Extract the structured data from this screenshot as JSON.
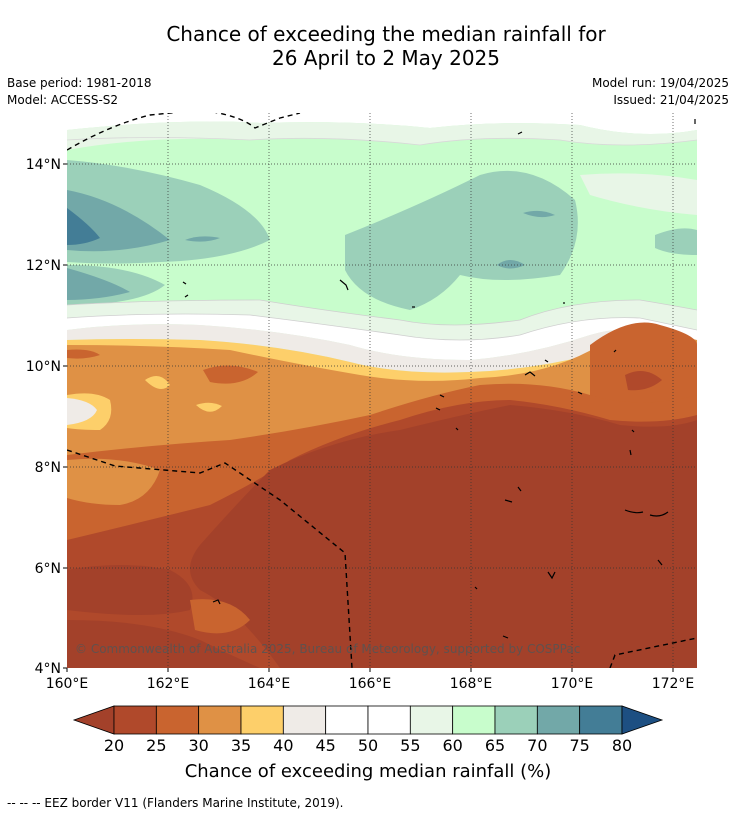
{
  "title_line1": "Chance of exceeding the median rainfall for",
  "title_line2": "26 April to 2 May 2025",
  "base_period": "Base period: 1981-2018",
  "model": "Model: ACCESS-S2",
  "model_run": "Model run: 19/04/2025",
  "issued": "Issued: 21/04/2025",
  "copyright": "© Commonwealth of Australia 2025, Bureau of Meteorology, supported by COSPPac",
  "colorbar_title": "Chance of exceeding median rainfall (%)",
  "footnote": "--  --  -- EEZ border V11 (Flanders Marine Institute, 2019).",
  "lat_labels": [
    "14°N",
    "12°N",
    "10°N",
    "8°N",
    "6°N",
    "4°N"
  ],
  "lon_labels": [
    "160°E",
    "162°E",
    "164°E",
    "166°E",
    "168°E",
    "170°E",
    "172°E"
  ],
  "chart_data": {
    "type": "heatmap",
    "lon_range": [
      160,
      172.5
    ],
    "lat_range": [
      4,
      15
    ],
    "colorbar": {
      "ticks": [
        20,
        25,
        30,
        35,
        40,
        45,
        50,
        55,
        60,
        65,
        70,
        75,
        80
      ],
      "colors": [
        "#a3412a",
        "#b0492b",
        "#c9642f",
        "#df9145",
        "#fdcf6a",
        "#efebe7",
        "#ffffff",
        "#ffffff",
        "#e8f6e7",
        "#c8fdcc",
        "#9bd0b9",
        "#72a8a8",
        "#437d96",
        "#1d4f82"
      ]
    }
  }
}
